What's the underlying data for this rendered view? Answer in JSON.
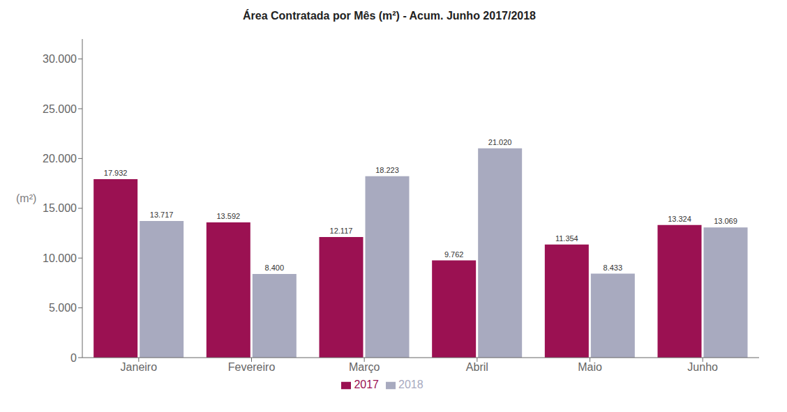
{
  "chart_data": {
    "type": "bar",
    "title": "Área Contratada por Mês (m²) - Acum. Junho 2017/2018",
    "ylabel": "(m²)",
    "categories": [
      "Janeiro",
      "Fevereiro",
      "Março",
      "Abril",
      "Maio",
      "Junho"
    ],
    "series": [
      {
        "name": "2017",
        "color": "#9B1152",
        "values": [
          17932,
          13592,
          12117,
          9762,
          11354,
          13324
        ],
        "value_labels": [
          "17.932",
          "13.592",
          "12.117",
          "9.762",
          "11.354",
          "13.324"
        ]
      },
      {
        "name": "2018",
        "color": "#A8AABF",
        "values": [
          13717,
          8400,
          18223,
          21020,
          8433,
          13069
        ],
        "value_labels": [
          "13.717",
          "8.400",
          "18.223",
          "21.020",
          "8.433",
          "13.069"
        ]
      }
    ],
    "ylim": [
      0,
      32000
    ],
    "yticks": [
      0,
      {
        "value": 5000,
        "label": "5.000"
      },
      {
        "value": 10000,
        "label": "10.000"
      },
      {
        "value": 15000,
        "label": "15.000"
      },
      {
        "value": 20000,
        "label": "20.000"
      },
      {
        "value": 25000,
        "label": "25.000"
      },
      {
        "value": 30000,
        "label": "30.000"
      }
    ],
    "grid": false,
    "legend": "bottom",
    "data_labels": true
  }
}
